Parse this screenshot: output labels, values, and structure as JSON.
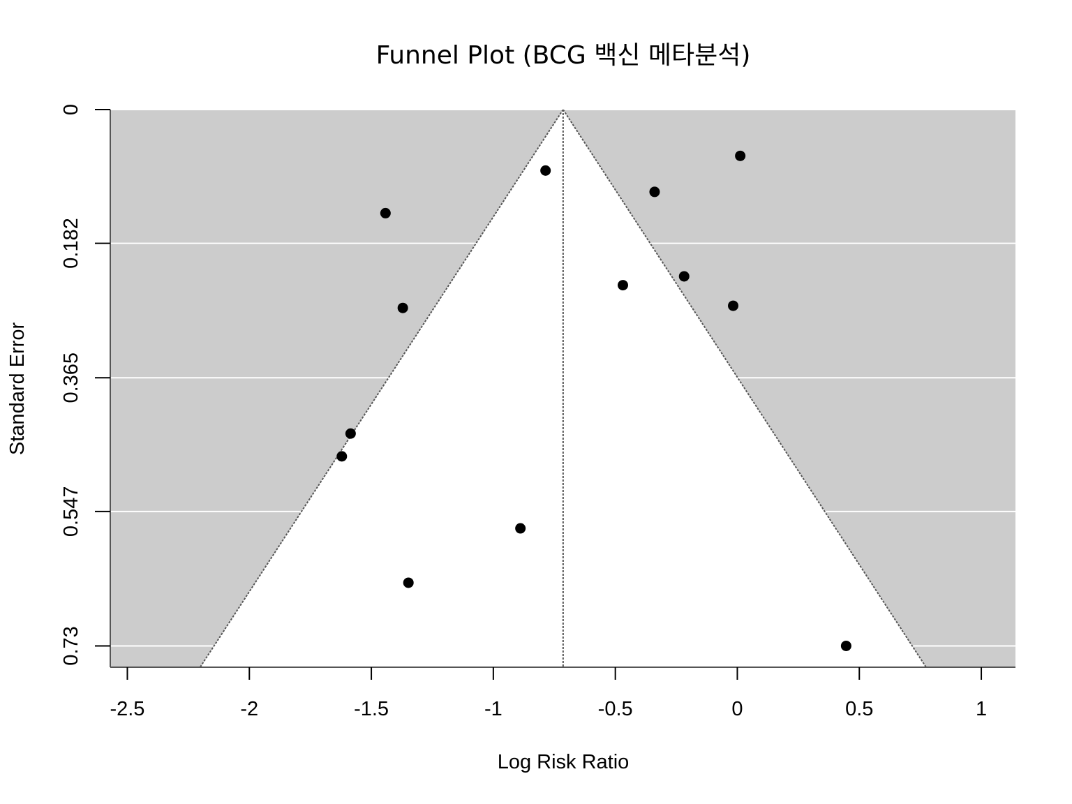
{
  "chart_data": {
    "type": "scatter",
    "title": "Funnel Plot (BCG 백신 메타분석)",
    "xlabel": "Log Risk Ratio",
    "ylabel": "Standard Error",
    "xlim": [
      -2.57,
      1.14
    ],
    "ylim": [
      0.759,
      0
    ],
    "y_reversed": true,
    "x_ticks": [
      -2.5,
      -2,
      -1.5,
      -1,
      -0.5,
      0,
      0.5,
      1
    ],
    "x_tick_labels": [
      "-2.5",
      "-2",
      "-1.5",
      "-1",
      "-0.5",
      "0",
      "0.5",
      "1"
    ],
    "y_ticks": [
      0,
      0.182,
      0.365,
      0.547,
      0.73
    ],
    "y_tick_labels": [
      "0",
      "0.182",
      "0.365",
      "0.547",
      "0.73"
    ],
    "grid": "horizontal",
    "pooled_estimate": -0.714,
    "funnel_multiplier": 1.96,
    "colors": {
      "panel_background": "#cccccc",
      "funnel_region": "#ffffff",
      "points": "#000000",
      "funnel_lines": "#555555"
    },
    "points": [
      {
        "x": -0.889,
        "y": 0.57
      },
      {
        "x": -1.585,
        "y": 0.441
      },
      {
        "x": -1.348,
        "y": 0.644
      },
      {
        "x": -1.442,
        "y": 0.141
      },
      {
        "x": -0.218,
        "y": 0.227
      },
      {
        "x": -0.786,
        "y": 0.083
      },
      {
        "x": -1.621,
        "y": 0.472
      },
      {
        "x": 0.012,
        "y": 0.063
      },
      {
        "x": -0.469,
        "y": 0.239
      },
      {
        "x": -1.371,
        "y": 0.27
      },
      {
        "x": -0.339,
        "y": 0.112
      },
      {
        "x": 0.446,
        "y": 0.73
      },
      {
        "x": -0.017,
        "y": 0.267
      }
    ]
  }
}
